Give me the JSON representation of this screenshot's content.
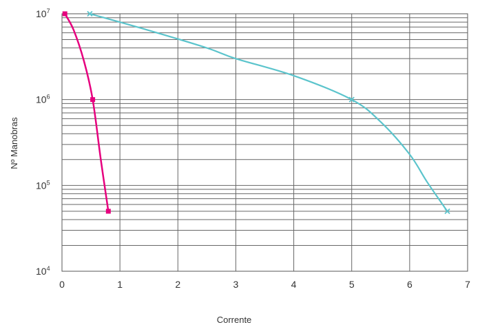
{
  "chart_data": {
    "type": "line",
    "xlabel": "Corrente",
    "ylabel": "Nº Manobras",
    "xlim": [
      0,
      7
    ],
    "ylim": [
      10000,
      10000000
    ],
    "yscale": "log",
    "grid": true,
    "x_ticks": [
      "0",
      "1",
      "2",
      "3",
      "4",
      "5",
      "6",
      "7"
    ],
    "y_ticks": [
      {
        "value": 10000,
        "base": "10",
        "exp": "4"
      },
      {
        "value": 100000,
        "base": "10",
        "exp": "5"
      },
      {
        "value": 1000000,
        "base": "10",
        "exp": "6"
      },
      {
        "value": 10000000,
        "base": "10",
        "exp": "7"
      }
    ],
    "series": [
      {
        "color": "#e6007e",
        "marker": "square",
        "points": [
          [
            0.05,
            10000000
          ],
          [
            0.53,
            1000000
          ],
          [
            0.8,
            50000
          ]
        ],
        "curve": [
          [
            0.05,
            10000000
          ],
          [
            0.2,
            6500000
          ],
          [
            0.38,
            2800000
          ],
          [
            0.53,
            1000000
          ],
          [
            0.67,
            200000
          ],
          [
            0.8,
            50000
          ]
        ]
      },
      {
        "color": "#5bc4cc",
        "marker": "x",
        "points": [
          [
            0.48,
            10000000
          ],
          [
            5.0,
            1000000
          ],
          [
            6.65,
            50000
          ]
        ],
        "curve": [
          [
            0.48,
            10000000
          ],
          [
            1.5,
            6400000
          ],
          [
            2.5,
            4000000
          ],
          [
            3.0,
            3000000
          ],
          [
            4.0,
            1900000
          ],
          [
            5.0,
            1000000
          ],
          [
            5.5,
            550000
          ],
          [
            6.0,
            230000
          ],
          [
            6.3,
            110000
          ],
          [
            6.65,
            50000
          ]
        ]
      }
    ]
  }
}
